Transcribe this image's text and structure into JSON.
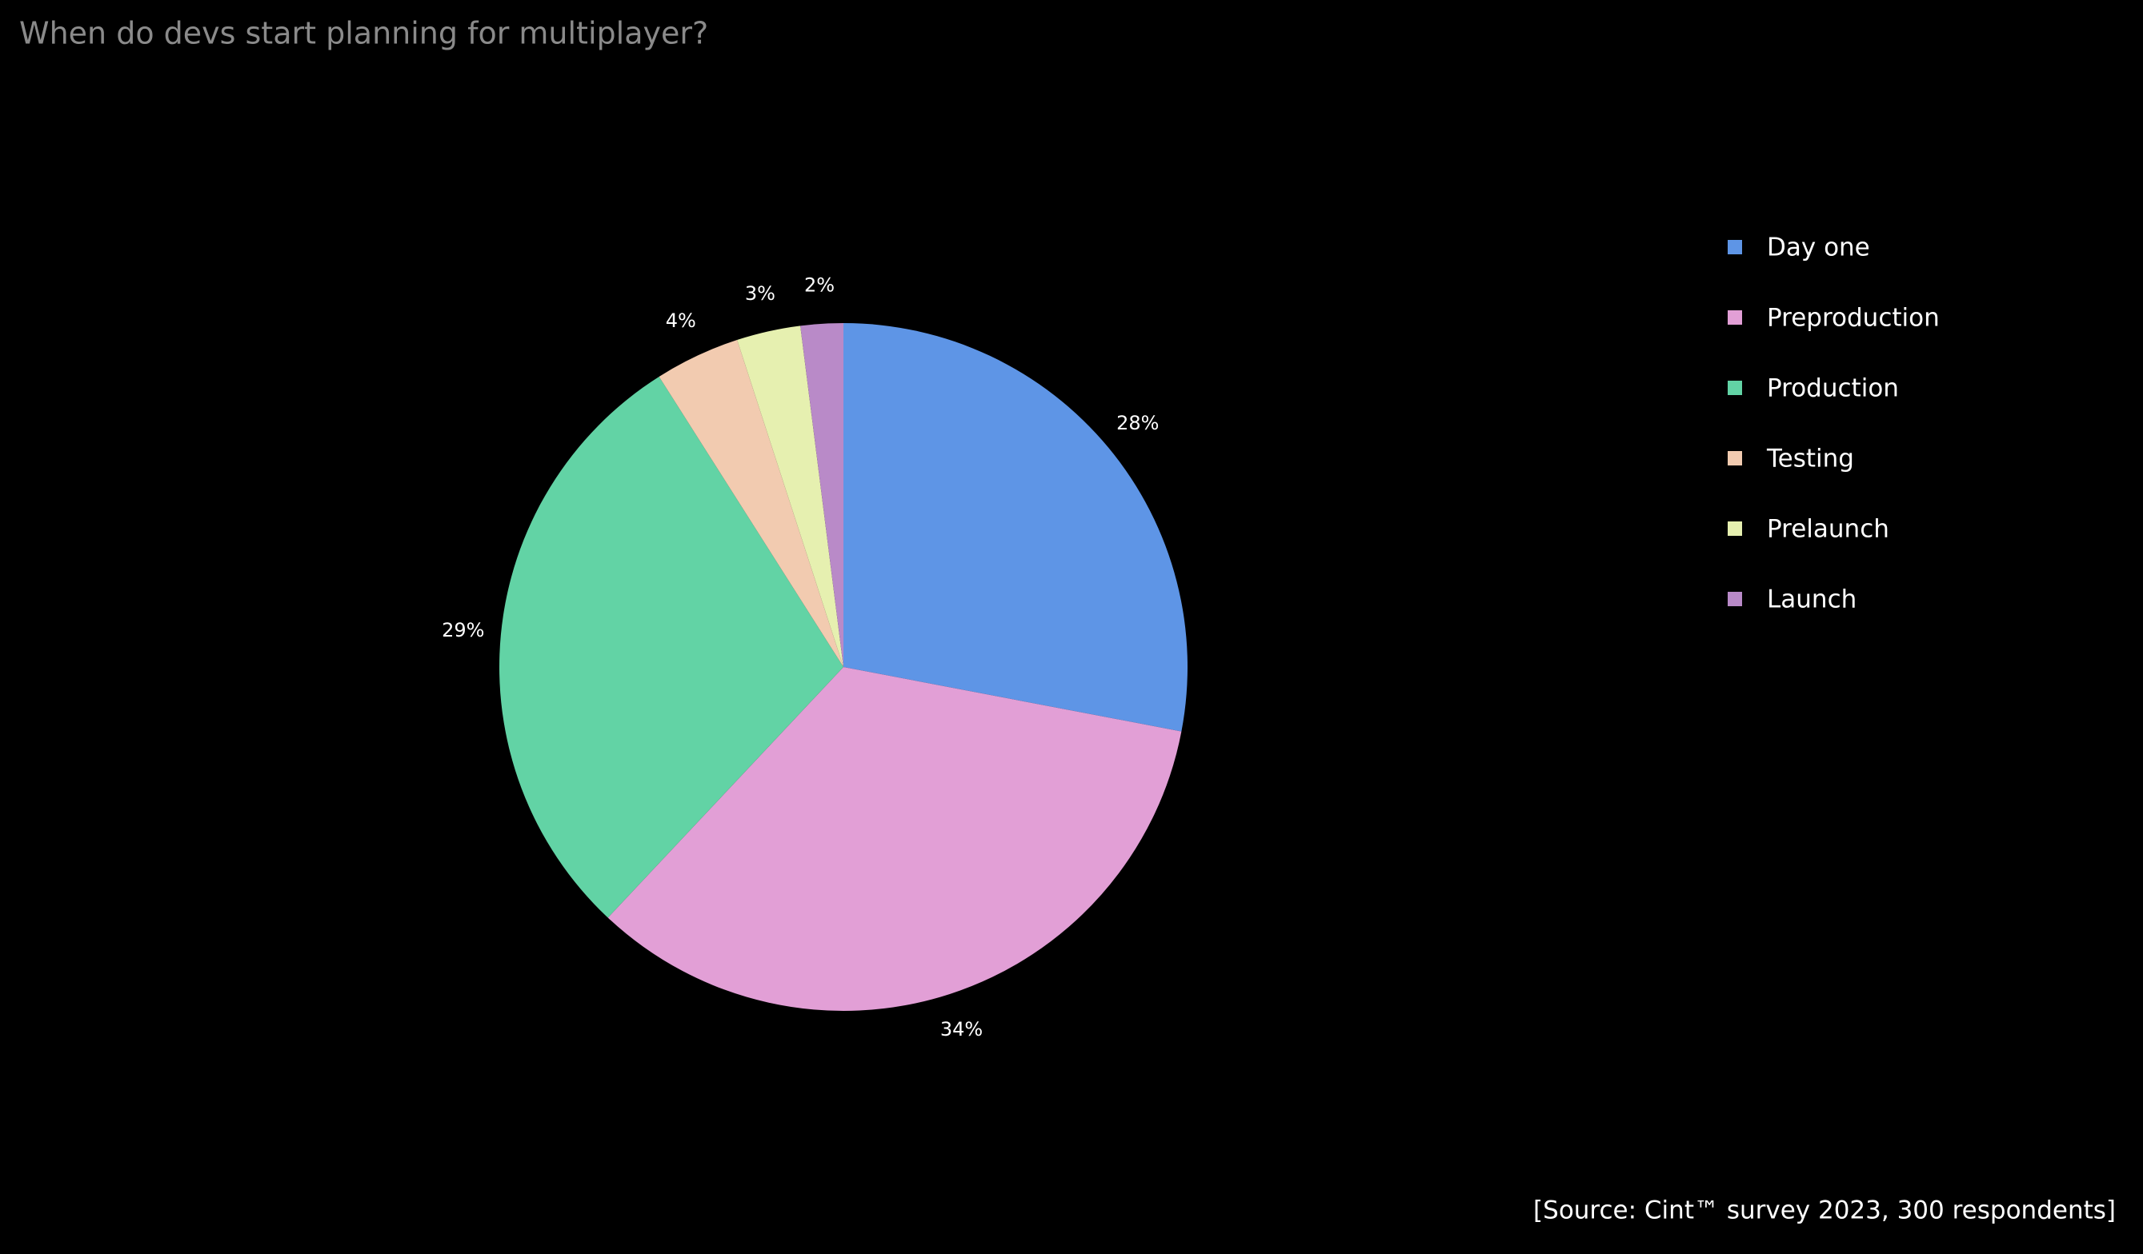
{
  "chart_data": {
    "type": "pie",
    "title": "When do devs start planning for multiplayer?",
    "source": "[Source: Cint™ survey 2023, 300 respondents]",
    "categories": [
      "Day one",
      "Preproduction",
      "Production",
      "Testing",
      "Prelaunch",
      "Launch"
    ],
    "values": [
      28,
      34,
      29,
      4,
      3,
      2
    ],
    "value_labels": [
      "28%",
      "34%",
      "29%",
      "4%",
      "3%",
      "2%"
    ],
    "colors": [
      "#5e95e6",
      "#e29fd6",
      "#62d3a5",
      "#f2cbb0",
      "#e6f0b0",
      "#b98ac8"
    ],
    "legend": "right"
  }
}
